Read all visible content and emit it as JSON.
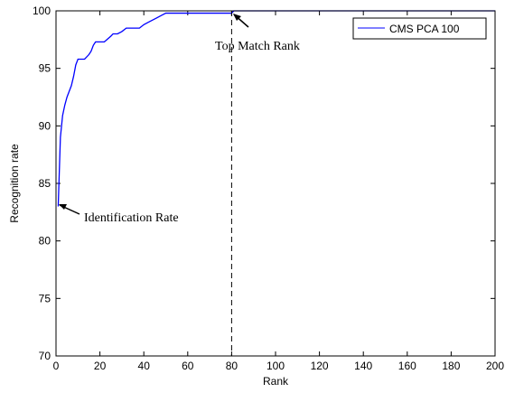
{
  "chart_data": {
    "type": "line",
    "xlabel": "Rank",
    "ylabel": "Recognition rate",
    "xlim": [
      0,
      200
    ],
    "ylim": [
      70,
      100
    ],
    "xticks": [
      0,
      20,
      40,
      60,
      80,
      100,
      120,
      140,
      160,
      180,
      200
    ],
    "yticks": [
      70,
      75,
      80,
      85,
      90,
      95,
      100
    ],
    "grid": false,
    "legend_position": "top-right",
    "series": [
      {
        "name": "CMS PCA 100",
        "color": "#0000ff",
        "x": [
          1,
          1.5,
          2,
          3,
          4,
          5,
          6,
          7,
          8,
          9,
          10,
          11,
          12,
          13,
          14,
          15,
          16,
          17,
          18,
          19,
          20,
          22,
          25,
          26,
          28,
          30,
          32,
          34,
          35,
          38,
          40,
          42,
          44,
          46,
          48,
          50,
          52,
          55,
          80,
          81,
          200
        ],
        "y": [
          83.0,
          86.0,
          89.0,
          90.9,
          91.8,
          92.5,
          93.0,
          93.5,
          94.3,
          95.3,
          95.8,
          95.8,
          95.8,
          95.8,
          96.0,
          96.2,
          96.5,
          97.0,
          97.3,
          97.3,
          97.3,
          97.3,
          97.8,
          98.0,
          98.0,
          98.2,
          98.5,
          98.5,
          98.5,
          98.5,
          98.8,
          99.0,
          99.2,
          99.4,
          99.6,
          99.8,
          99.8,
          99.8,
          99.8,
          100,
          100
        ]
      }
    ],
    "vlines": [
      {
        "x": 80,
        "style": "dashed"
      }
    ],
    "annotations": [
      {
        "text": "Top Match Rank",
        "x": 80,
        "y": 100
      },
      {
        "text": "Identification Rate",
        "x": 1,
        "y": 83
      }
    ]
  }
}
